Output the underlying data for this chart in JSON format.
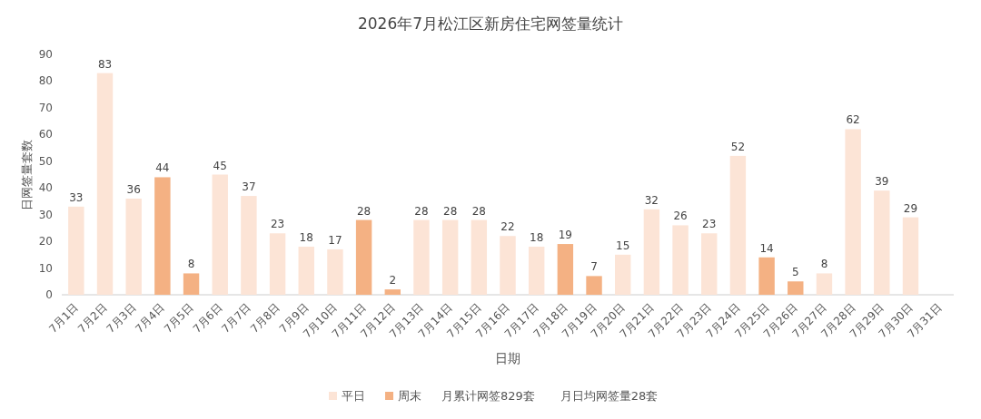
{
  "chart_data": {
    "type": "bar",
    "title": "2026年7月松江区新房住宅网签量统计",
    "xlabel": "日期",
    "ylabel": "日网签量套数",
    "categories": [
      "7月1日",
      "7月2日",
      "7月3日",
      "7月4日",
      "7月5日",
      "7月6日",
      "7月7日",
      "7月8日",
      "7月9日",
      "7月10日",
      "7月11日",
      "7月12日",
      "7月13日",
      "7月14日",
      "7月15日",
      "7月16日",
      "7月17日",
      "7月18日",
      "7月19日",
      "7月20日",
      "7月21日",
      "7月22日",
      "7月23日",
      "7月24日",
      "7月25日",
      "7月26日",
      "7月27日",
      "7月28日",
      "7月29日",
      "7月30日",
      "7月31日"
    ],
    "series": [
      {
        "name": "平日",
        "color": "#fce4d6",
        "values": [
          33,
          83,
          36,
          null,
          null,
          45,
          37,
          23,
          18,
          17,
          null,
          null,
          28,
          28,
          28,
          22,
          18,
          null,
          null,
          15,
          32,
          26,
          23,
          52,
          null,
          null,
          8,
          62,
          39,
          29,
          null
        ]
      },
      {
        "name": "周末",
        "color": "#f4b183",
        "values": [
          null,
          null,
          null,
          44,
          8,
          null,
          null,
          null,
          null,
          null,
          28,
          2,
          null,
          null,
          null,
          null,
          null,
          19,
          7,
          null,
          null,
          null,
          null,
          null,
          14,
          5,
          null,
          null,
          null,
          null,
          null
        ]
      }
    ],
    "stacked": true,
    "ylim": [
      0,
      90
    ],
    "yticks": [
      0,
      10,
      20,
      30,
      40,
      50,
      60,
      70,
      80,
      90
    ],
    "data_labels": true,
    "legend": "bottom",
    "annotations": [
      "月累计网签829套",
      "月日均网签量28套"
    ]
  }
}
